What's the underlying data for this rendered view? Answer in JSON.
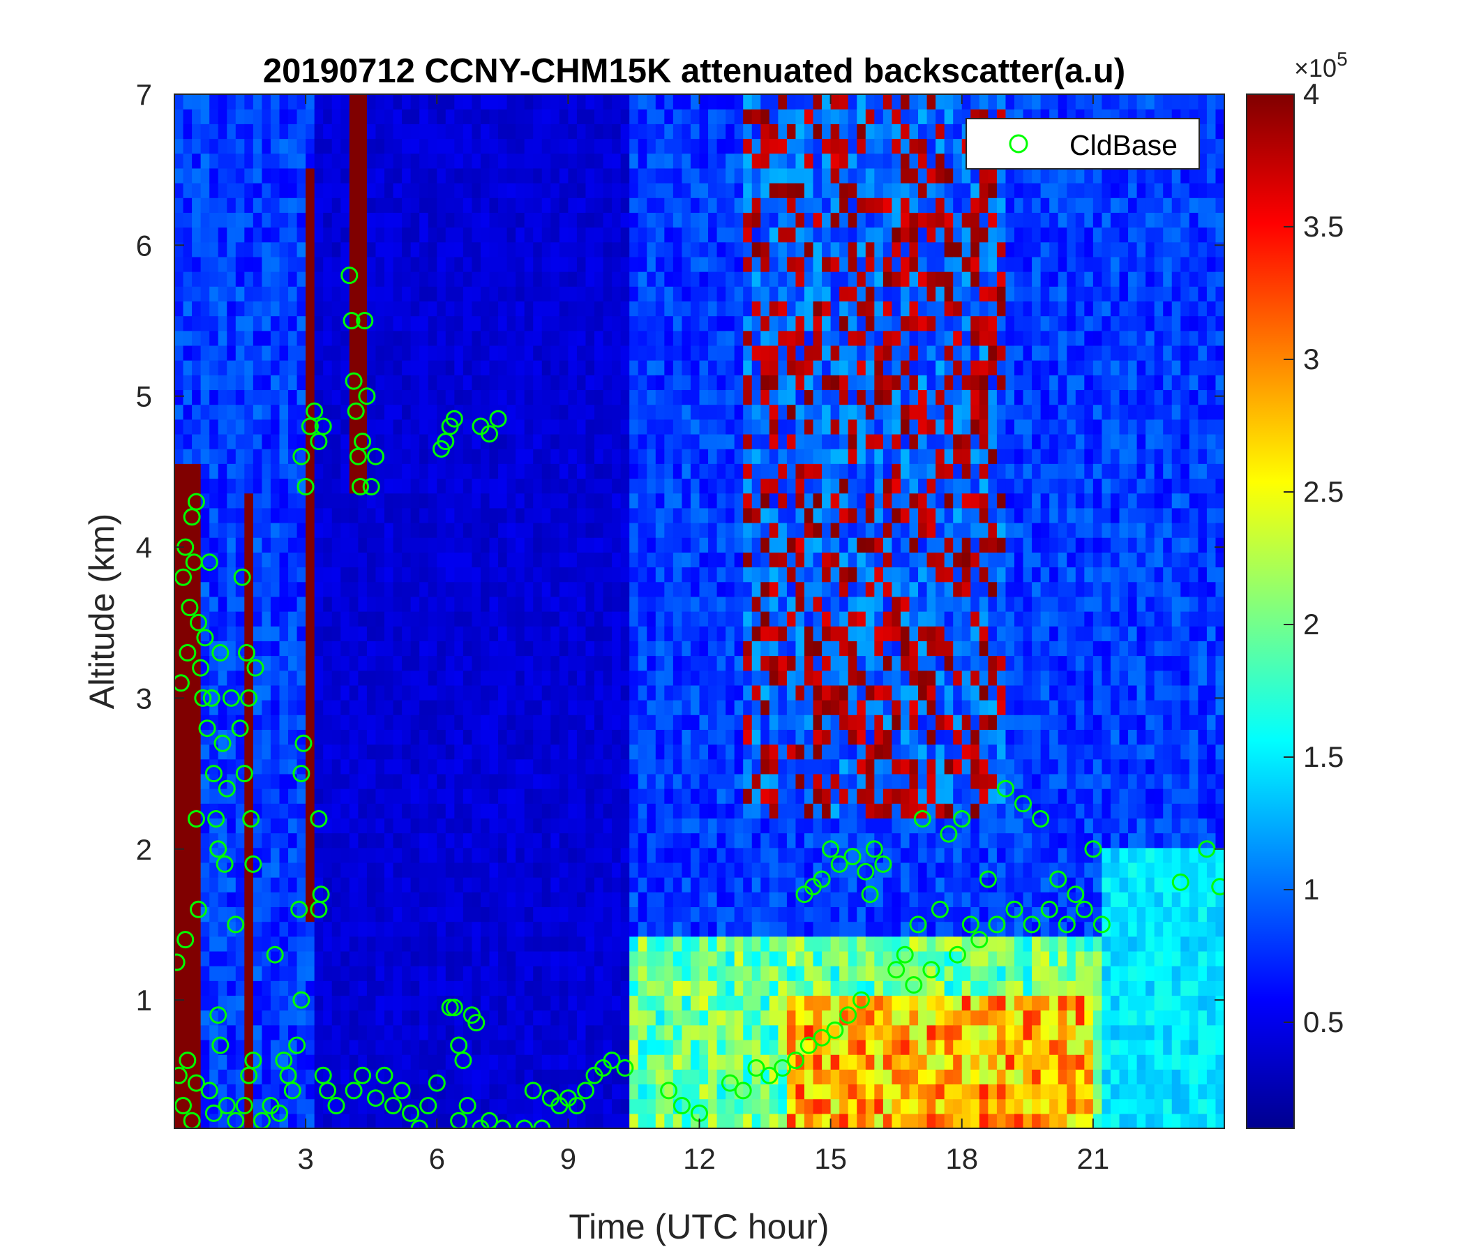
{
  "chart_data": {
    "type": "heatmap",
    "title": "20190712 CCNY-CHM15K attenuated backscatter(a.u)",
    "xlabel": "Time (UTC hour)",
    "ylabel": "Altitude (km)",
    "xlim": [
      0,
      24
    ],
    "ylim": [
      0.15,
      7
    ],
    "xticks": [
      3,
      6,
      9,
      12,
      15,
      18,
      21
    ],
    "yticks": [
      1,
      2,
      3,
      4,
      5,
      6,
      7
    ],
    "colorbar": {
      "colormap": "jet",
      "clim": [
        0.1,
        4.0
      ],
      "ticks": [
        0.5,
        1,
        1.5,
        2,
        2.5,
        3,
        3.5,
        4
      ],
      "tick_labels": [
        "0.5",
        "1",
        "1.5",
        "2",
        "2.5",
        "3",
        "3.5",
        "4"
      ],
      "exponent_base": "×10",
      "exponent_power": "5"
    },
    "legend": {
      "placement": "top-right",
      "entries": [
        {
          "name": "CldBase",
          "marker": "open-circle",
          "color": "#00ff00"
        }
      ]
    },
    "series": [
      {
        "name": "CldBase",
        "marker_color": "#00ff00",
        "points": [
          [
            0.05,
            1.25
          ],
          [
            0.25,
            1.4
          ],
          [
            0.1,
            0.5
          ],
          [
            0.2,
            0.3
          ],
          [
            0.3,
            0.6
          ],
          [
            0.4,
            0.2
          ],
          [
            0.5,
            0.45
          ],
          [
            0.15,
            3.1
          ],
          [
            0.2,
            3.8
          ],
          [
            0.25,
            4.0
          ],
          [
            0.3,
            3.3
          ],
          [
            0.35,
            3.6
          ],
          [
            0.4,
            4.2
          ],
          [
            0.45,
            3.9
          ],
          [
            0.5,
            4.3
          ],
          [
            0.55,
            3.5
          ],
          [
            0.6,
            3.2
          ],
          [
            0.65,
            3.0
          ],
          [
            0.5,
            2.2
          ],
          [
            0.55,
            1.6
          ],
          [
            0.7,
            3.4
          ],
          [
            0.75,
            2.8
          ],
          [
            0.8,
            3.9
          ],
          [
            0.85,
            3.0
          ],
          [
            0.9,
            2.5
          ],
          [
            0.95,
            2.2
          ],
          [
            1.0,
            2.0
          ],
          [
            1.05,
            3.3
          ],
          [
            1.1,
            2.7
          ],
          [
            1.15,
            1.9
          ],
          [
            1.0,
            0.9
          ],
          [
            1.05,
            0.7
          ],
          [
            1.2,
            2.4
          ],
          [
            1.3,
            3.0
          ],
          [
            1.4,
            1.5
          ],
          [
            1.5,
            2.8
          ],
          [
            1.55,
            3.8
          ],
          [
            1.6,
            2.5
          ],
          [
            1.65,
            3.3
          ],
          [
            1.7,
            3.0
          ],
          [
            1.75,
            2.2
          ],
          [
            1.8,
            1.9
          ],
          [
            1.85,
            3.2
          ],
          [
            1.6,
            0.3
          ],
          [
            1.7,
            0.5
          ],
          [
            1.8,
            0.6
          ],
          [
            0.8,
            0.4
          ],
          [
            0.9,
            0.25
          ],
          [
            1.2,
            0.3
          ],
          [
            1.4,
            0.2
          ],
          [
            2.0,
            0.2
          ],
          [
            2.2,
            0.3
          ],
          [
            2.4,
            0.25
          ],
          [
            2.5,
            0.6
          ],
          [
            2.3,
            1.3
          ],
          [
            2.6,
            0.5
          ],
          [
            2.7,
            0.4
          ],
          [
            2.8,
            0.7
          ],
          [
            2.9,
            1.0
          ],
          [
            2.85,
            1.6
          ],
          [
            2.9,
            2.5
          ],
          [
            2.95,
            2.7
          ],
          [
            2.9,
            4.6
          ],
          [
            3.0,
            4.4
          ],
          [
            3.1,
            4.8
          ],
          [
            3.2,
            4.9
          ],
          [
            3.3,
            4.7
          ],
          [
            3.4,
            4.8
          ],
          [
            3.3,
            2.2
          ],
          [
            3.35,
            1.7
          ],
          [
            3.3,
            1.6
          ],
          [
            3.4,
            0.5
          ],
          [
            3.5,
            0.4
          ],
          [
            3.7,
            0.3
          ],
          [
            4.0,
            5.8
          ],
          [
            4.05,
            5.5
          ],
          [
            4.1,
            5.1
          ],
          [
            4.15,
            4.9
          ],
          [
            4.2,
            4.6
          ],
          [
            4.25,
            4.4
          ],
          [
            4.3,
            4.7
          ],
          [
            4.35,
            5.5
          ],
          [
            4.4,
            5.0
          ],
          [
            4.5,
            4.4
          ],
          [
            4.6,
            4.6
          ],
          [
            4.1,
            0.4
          ],
          [
            4.3,
            0.5
          ],
          [
            4.6,
            0.35
          ],
          [
            4.8,
            0.5
          ],
          [
            5.0,
            0.3
          ],
          [
            5.2,
            0.4
          ],
          [
            5.4,
            0.25
          ],
          [
            5.6,
            0.15
          ],
          [
            5.8,
            0.3
          ],
          [
            6.0,
            0.45
          ],
          [
            6.1,
            4.65
          ],
          [
            6.2,
            4.7
          ],
          [
            6.3,
            4.8
          ],
          [
            6.4,
            4.85
          ],
          [
            6.3,
            0.95
          ],
          [
            6.4,
            0.95
          ],
          [
            6.5,
            0.7
          ],
          [
            6.6,
            0.6
          ],
          [
            6.7,
            0.3
          ],
          [
            6.5,
            0.2
          ],
          [
            6.8,
            0.9
          ],
          [
            6.9,
            0.85
          ],
          [
            7.0,
            0.15
          ],
          [
            7.2,
            0.2
          ],
          [
            7.0,
            4.8
          ],
          [
            7.2,
            4.75
          ],
          [
            7.4,
            4.85
          ],
          [
            7.5,
            0.15
          ],
          [
            8.0,
            0.15
          ],
          [
            8.2,
            0.4
          ],
          [
            8.4,
            0.15
          ],
          [
            8.6,
            0.35
          ],
          [
            8.8,
            0.3
          ],
          [
            9.0,
            0.35
          ],
          [
            9.2,
            0.3
          ],
          [
            9.4,
            0.4
          ],
          [
            9.6,
            0.5
          ],
          [
            9.8,
            0.55
          ],
          [
            10.0,
            0.6
          ],
          [
            10.3,
            0.55
          ],
          [
            11.3,
            0.4
          ],
          [
            11.6,
            0.3
          ],
          [
            12.0,
            0.25
          ],
          [
            12.7,
            0.45
          ],
          [
            13.0,
            0.4
          ],
          [
            13.3,
            0.55
          ],
          [
            13.6,
            0.5
          ],
          [
            13.9,
            0.55
          ],
          [
            14.2,
            0.6
          ],
          [
            14.5,
            0.7
          ],
          [
            14.8,
            0.75
          ],
          [
            15.1,
            0.8
          ],
          [
            15.4,
            0.9
          ],
          [
            15.7,
            1.0
          ],
          [
            14.4,
            1.7
          ],
          [
            14.6,
            1.75
          ],
          [
            14.8,
            1.8
          ],
          [
            15.0,
            2.0
          ],
          [
            15.2,
            1.9
          ],
          [
            15.5,
            1.95
          ],
          [
            15.8,
            1.85
          ],
          [
            15.9,
            1.7
          ],
          [
            16.0,
            2.0
          ],
          [
            16.2,
            1.9
          ],
          [
            16.5,
            1.2
          ],
          [
            16.7,
            1.3
          ],
          [
            16.9,
            1.1
          ],
          [
            17.0,
            1.5
          ],
          [
            17.1,
            2.2
          ],
          [
            17.3,
            1.2
          ],
          [
            17.5,
            1.6
          ],
          [
            17.7,
            2.1
          ],
          [
            17.9,
            1.3
          ],
          [
            18.0,
            2.2
          ],
          [
            18.2,
            1.5
          ],
          [
            18.4,
            1.4
          ],
          [
            18.6,
            1.8
          ],
          [
            18.8,
            1.5
          ],
          [
            19.0,
            2.4
          ],
          [
            19.2,
            1.6
          ],
          [
            19.4,
            2.3
          ],
          [
            19.6,
            1.5
          ],
          [
            19.8,
            2.2
          ],
          [
            20.0,
            1.6
          ],
          [
            20.2,
            1.8
          ],
          [
            20.4,
            1.5
          ],
          [
            20.6,
            1.7
          ],
          [
            20.8,
            1.6
          ],
          [
            21.0,
            2.0
          ],
          [
            21.2,
            1.5
          ],
          [
            23.0,
            1.78
          ],
          [
            23.6,
            2.0
          ],
          [
            23.9,
            1.75
          ]
        ]
      }
    ]
  }
}
